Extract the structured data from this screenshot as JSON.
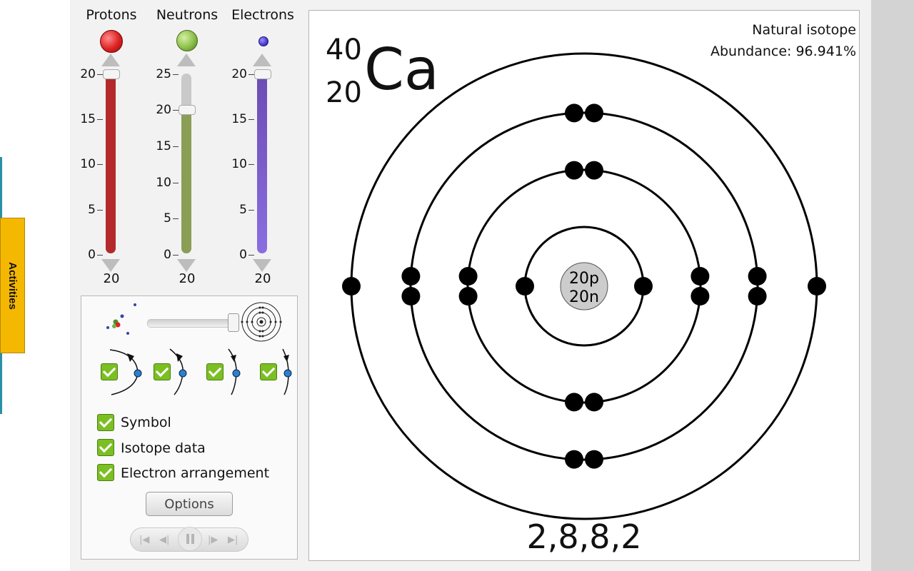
{
  "sidebar": {
    "activities_label": "Activities"
  },
  "sliders": [
    {
      "title": "Protons",
      "value_label": "20",
      "value": 20,
      "max": 20,
      "ticks": [
        "0",
        "5",
        "10",
        "15",
        "20"
      ],
      "color": "#b42a2a",
      "ball_color": "#dd2222"
    },
    {
      "title": "Neutrons",
      "value_label": "20",
      "value": 20,
      "max": 25,
      "ticks": [
        "0",
        "5",
        "10",
        "15",
        "20",
        "25"
      ],
      "color": "#8a9e55",
      "ball_color": "#8cbf4a"
    },
    {
      "title": "Electrons",
      "value_label": "20",
      "value": 20,
      "max": 20,
      "ticks": [
        "0",
        "5",
        "10",
        "15",
        "20"
      ],
      "color": "#7a55c8",
      "ball_color": "#4a3ad0"
    }
  ],
  "panel": {
    "zoom_value": 1.0,
    "symbol_label": "Symbol",
    "isotope_label": "Isotope data",
    "arrangement_label": "Electron arrangement",
    "options_label": "Options"
  },
  "display": {
    "mass_number": "40",
    "atomic_number": "20",
    "element_symbol": "Ca",
    "isotope_line1": "Natural isotope",
    "isotope_line2": "Abundance: 96.941%",
    "nucleus_protons": "20p",
    "nucleus_neutrons": "20n",
    "electron_arrangement": "2,8,8,2",
    "shells": [
      2,
      8,
      8,
      2
    ]
  }
}
